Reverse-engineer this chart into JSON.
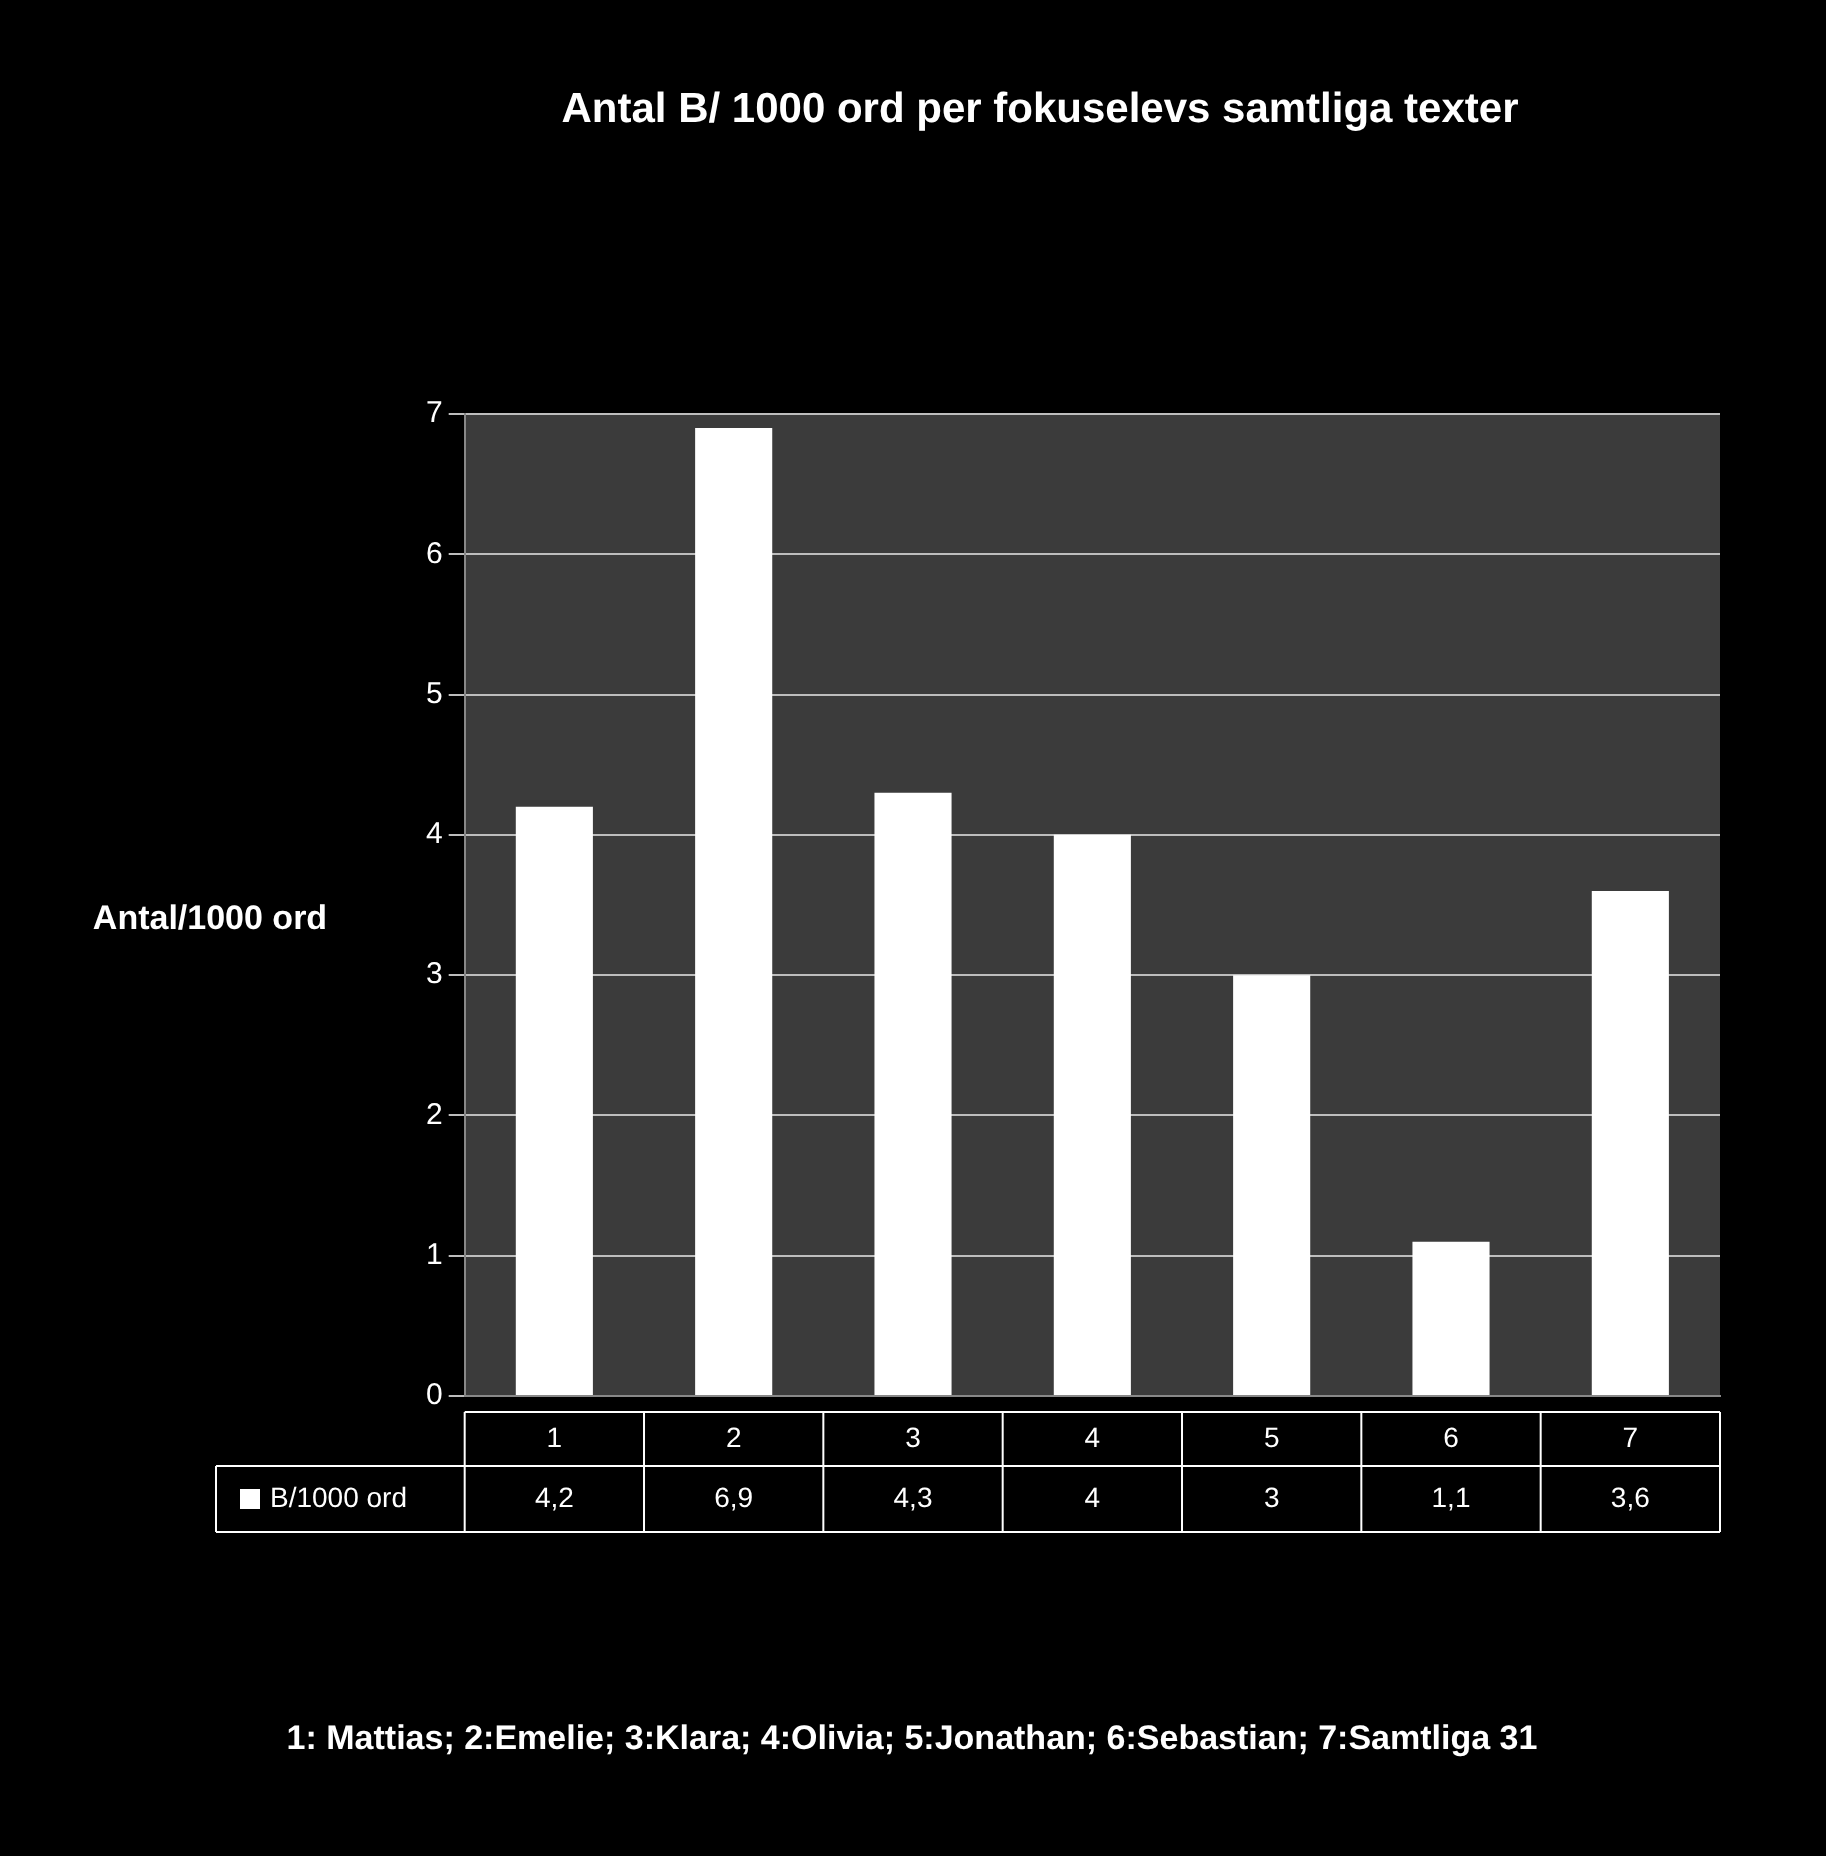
{
  "chart_data": {
    "type": "bar",
    "title": "Antal B/ 1000 ord per fokuselevs samtliga texter",
    "ylabel": "Antal/1000 ord",
    "categories": [
      "1",
      "2",
      "3",
      "4",
      "5",
      "6",
      "7"
    ],
    "series": [
      {
        "name": "B/1000 ord",
        "color": "#ffffff",
        "values": [
          4.2,
          6.9,
          4.3,
          4,
          3,
          1.1,
          3.6
        ],
        "value_labels": [
          "4,2",
          "6,9",
          "4,3",
          "4",
          "3",
          "1,1",
          "3,6"
        ]
      }
    ],
    "ylim": [
      0,
      7
    ],
    "yticks": [
      0,
      1,
      2,
      3,
      4,
      5,
      6,
      7
    ],
    "grid": "y",
    "legend": "bottom",
    "annotations": [
      "1: Mattias; 2:Emelie; 3:Klara; 4:Olivia; 5:Jonathan; 6:Sebastian; 7:Samtliga 31"
    ]
  }
}
